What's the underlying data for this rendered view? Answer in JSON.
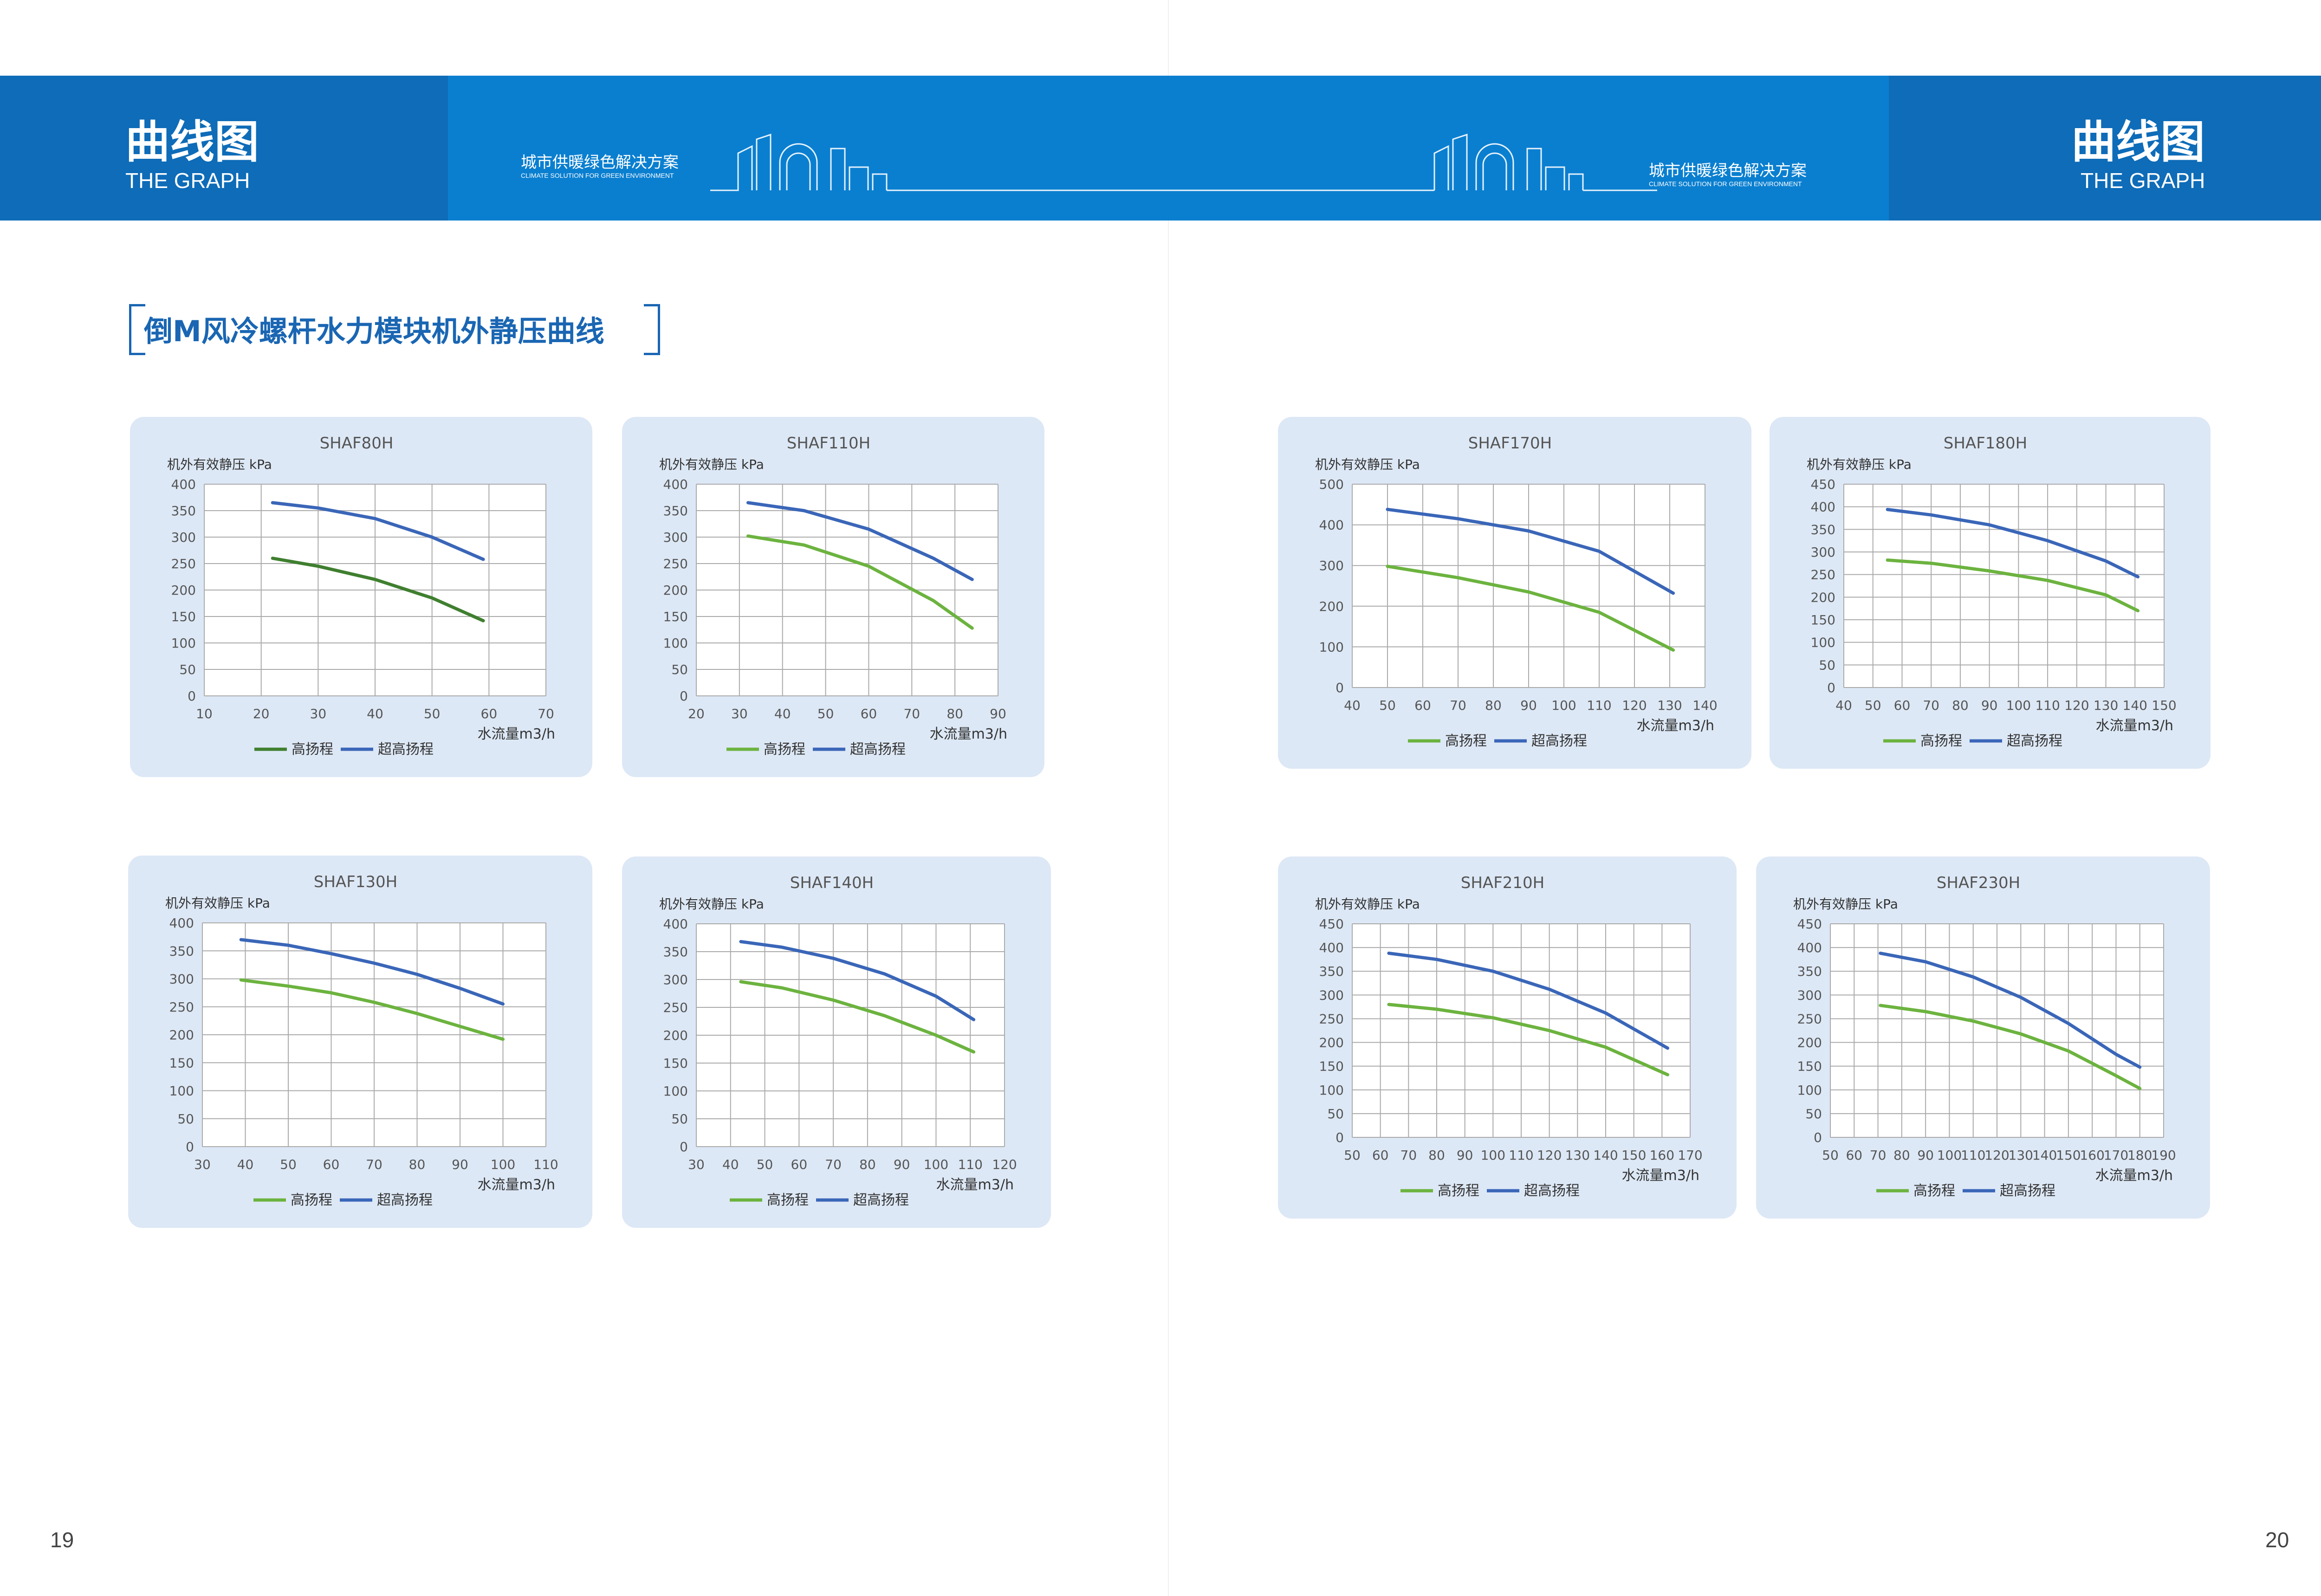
{
  "header": {
    "title": "曲线图",
    "subtitle": "THE GRAPH",
    "slogan": "城市供暖绿色解决方案",
    "slogan_en": "CLIMATE SOLUTION FOR GREEN ENVIRONMENT"
  },
  "section_title": "倒M风冷螺杆水力模块机外静压曲线",
  "page_left": "19",
  "page_right": "20",
  "colors": {
    "band": "#0a7fd0",
    "band_dark": "#0e6cb8",
    "card": "#dde8f6",
    "high_green": "#6cb33f",
    "high_dark_green": "#3f7f2f",
    "super_blue": "#3a66b8"
  },
  "chart_data": [
    {
      "type": "line",
      "title": "SHAF80H",
      "ylabel": "机外有效静压 kPa",
      "xlabel": "水流量m3/h",
      "xlim": [
        10,
        70
      ],
      "ylim": [
        0,
        400
      ],
      "xticks": [
        10,
        20,
        30,
        40,
        50,
        60,
        70
      ],
      "yticks": [
        0,
        50,
        100,
        150,
        200,
        250,
        300,
        350,
        400
      ],
      "series": [
        {
          "name": "高扬程",
          "color": "#3f7f2f",
          "x": [
            22,
            30,
            40,
            50,
            59
          ],
          "y": [
            260,
            245,
            220,
            185,
            142
          ]
        },
        {
          "name": "超高扬程",
          "color": "#3a66b8",
          "x": [
            22,
            30,
            40,
            50,
            59
          ],
          "y": [
            365,
            355,
            335,
            300,
            258
          ]
        }
      ]
    },
    {
      "type": "line",
      "title": "SHAF110H",
      "ylabel": "机外有效静压 kPa",
      "xlabel": "水流量m3/h",
      "xlim": [
        20,
        90
      ],
      "ylim": [
        0,
        400
      ],
      "xticks": [
        20,
        30,
        40,
        50,
        60,
        70,
        80,
        90
      ],
      "yticks": [
        0,
        50,
        100,
        150,
        200,
        250,
        300,
        350,
        400
      ],
      "series": [
        {
          "name": "高扬程",
          "color": "#6cb33f",
          "x": [
            32,
            45,
            60,
            75,
            84
          ],
          "y": [
            302,
            285,
            245,
            180,
            128
          ]
        },
        {
          "name": "超高扬程",
          "color": "#3a66b8",
          "x": [
            32,
            45,
            60,
            75,
            84
          ],
          "y": [
            365,
            350,
            315,
            260,
            220
          ]
        }
      ]
    },
    {
      "type": "line",
      "title": "SHAF130H",
      "ylabel": "机外有效静压 kPa",
      "xlabel": "水流量m3/h",
      "xlim": [
        30,
        110
      ],
      "ylim": [
        0,
        400
      ],
      "xticks": [
        30,
        40,
        50,
        60,
        70,
        80,
        90,
        100,
        110
      ],
      "yticks": [
        0,
        50,
        100,
        150,
        200,
        250,
        300,
        350,
        400
      ],
      "series": [
        {
          "name": "高扬程",
          "color": "#6cb33f",
          "x": [
            39,
            50,
            60,
            70,
            80,
            90,
            100
          ],
          "y": [
            298,
            287,
            275,
            258,
            238,
            215,
            192
          ]
        },
        {
          "name": "超高扬程",
          "color": "#3a66b8",
          "x": [
            39,
            50,
            60,
            70,
            80,
            90,
            100
          ],
          "y": [
            370,
            360,
            345,
            328,
            308,
            283,
            255
          ]
        }
      ]
    },
    {
      "type": "line",
      "title": "SHAF140H",
      "ylabel": "机外有效静压 kPa",
      "xlabel": "水流量m3/h",
      "xlim": [
        30,
        120
      ],
      "ylim": [
        0,
        400
      ],
      "xticks": [
        30,
        40,
        50,
        60,
        70,
        80,
        90,
        100,
        110,
        120
      ],
      "yticks": [
        0,
        50,
        100,
        150,
        200,
        250,
        300,
        350,
        400
      ],
      "series": [
        {
          "name": "高扬程",
          "color": "#6cb33f",
          "x": [
            43,
            55,
            70,
            85,
            100,
            111
          ],
          "y": [
            296,
            285,
            263,
            235,
            200,
            170
          ]
        },
        {
          "name": "超高扬程",
          "color": "#3a66b8",
          "x": [
            43,
            55,
            70,
            85,
            100,
            111
          ],
          "y": [
            368,
            358,
            338,
            310,
            270,
            228
          ]
        }
      ]
    },
    {
      "type": "line",
      "title": "SHAF170H",
      "ylabel": "机外有效静压 kPa",
      "xlabel": "水流量m3/h",
      "xlim": [
        40,
        140
      ],
      "ylim": [
        0,
        500
      ],
      "xticks": [
        40,
        50,
        60,
        70,
        80,
        90,
        100,
        110,
        120,
        130,
        140
      ],
      "yticks": [
        0,
        100,
        200,
        300,
        400,
        500
      ],
      "series": [
        {
          "name": "高扬程",
          "color": "#6cb33f",
          "x": [
            50,
            70,
            90,
            110,
            131
          ],
          "y": [
            298,
            270,
            235,
            185,
            92
          ]
        },
        {
          "name": "超高扬程",
          "color": "#3a66b8",
          "x": [
            50,
            70,
            90,
            110,
            131
          ],
          "y": [
            438,
            415,
            385,
            335,
            232
          ]
        }
      ]
    },
    {
      "type": "line",
      "title": "SHAF180H",
      "ylabel": "机外有效静压 kPa",
      "xlabel": "水流量m3/h",
      "xlim": [
        40,
        150
      ],
      "ylim": [
        0,
        450
      ],
      "xticks": [
        40,
        50,
        60,
        70,
        80,
        90,
        100,
        110,
        120,
        130,
        140,
        150
      ],
      "yticks": [
        0,
        50,
        100,
        150,
        200,
        250,
        300,
        350,
        400,
        450
      ],
      "series": [
        {
          "name": "高扬程",
          "color": "#6cb33f",
          "x": [
            55,
            70,
            90,
            110,
            130,
            141
          ],
          "y": [
            282,
            275,
            258,
            237,
            205,
            170
          ]
        },
        {
          "name": "超高扬程",
          "color": "#3a66b8",
          "x": [
            55,
            70,
            90,
            110,
            130,
            141
          ],
          "y": [
            394,
            382,
            360,
            325,
            280,
            245
          ]
        }
      ]
    },
    {
      "type": "line",
      "title": "SHAF210H",
      "ylabel": "机外有效静压 kPa",
      "xlabel": "水流量m3/h",
      "xlim": [
        50,
        170
      ],
      "ylim": [
        0,
        450
      ],
      "xticks": [
        50,
        60,
        70,
        80,
        90,
        100,
        110,
        120,
        130,
        140,
        150,
        160,
        170
      ],
      "yticks": [
        0,
        50,
        100,
        150,
        200,
        250,
        300,
        350,
        400,
        450
      ],
      "series": [
        {
          "name": "高扬程",
          "color": "#6cb33f",
          "x": [
            63,
            80,
            100,
            120,
            140,
            162
          ],
          "y": [
            280,
            270,
            252,
            225,
            190,
            132
          ]
        },
        {
          "name": "超高扬程",
          "color": "#3a66b8",
          "x": [
            63,
            80,
            100,
            120,
            140,
            162
          ],
          "y": [
            388,
            375,
            350,
            312,
            262,
            188
          ]
        }
      ]
    },
    {
      "type": "line",
      "title": "SHAF230H",
      "ylabel": "机外有效静压 kPa",
      "xlabel": "水流量m3/h",
      "xlim": [
        50,
        190
      ],
      "ylim": [
        0,
        450
      ],
      "xticks": [
        50,
        60,
        70,
        80,
        90,
        100,
        110,
        120,
        130,
        140,
        150,
        160,
        170,
        180,
        190
      ],
      "yticks": [
        0,
        50,
        100,
        150,
        200,
        250,
        300,
        350,
        400,
        450
      ],
      "series": [
        {
          "name": "高扬程",
          "color": "#6cb33f",
          "x": [
            71,
            90,
            110,
            130,
            150,
            170,
            180
          ],
          "y": [
            278,
            265,
            245,
            218,
            182,
            130,
            103
          ]
        },
        {
          "name": "超高扬程",
          "color": "#3a66b8",
          "x": [
            71,
            90,
            110,
            130,
            150,
            170,
            180
          ],
          "y": [
            388,
            370,
            338,
            295,
            240,
            175,
            148
          ]
        }
      ]
    }
  ]
}
